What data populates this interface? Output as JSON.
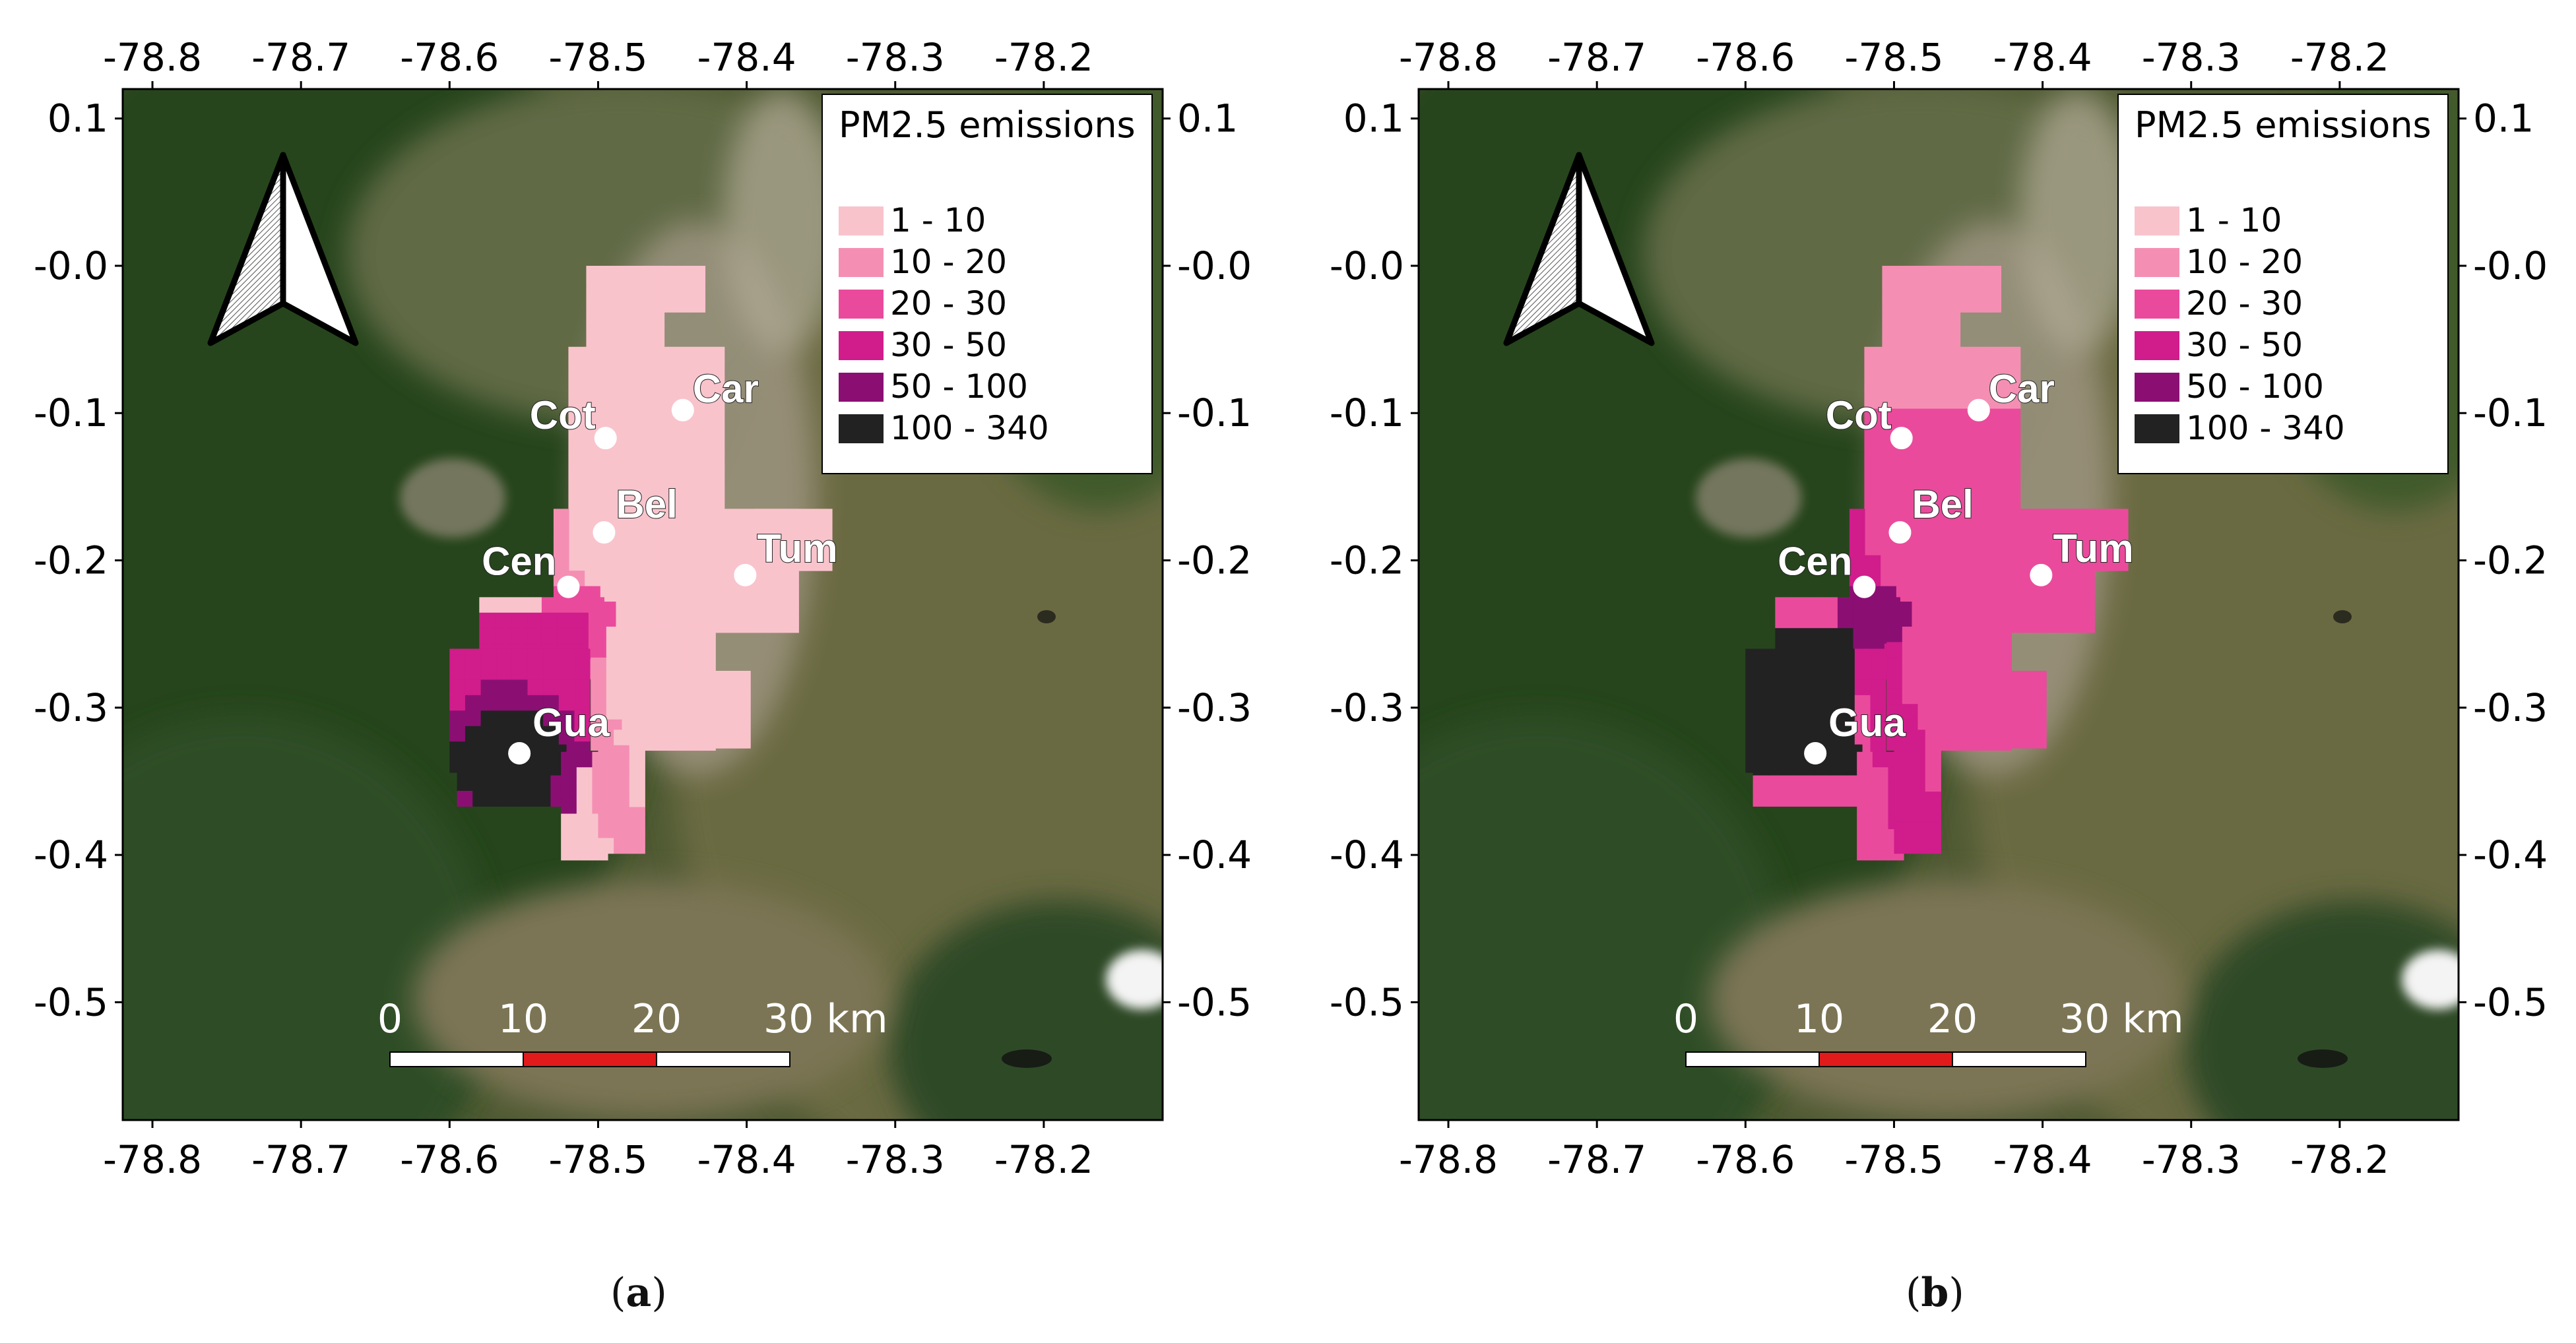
{
  "panels": [
    {
      "id": "a",
      "label_open": "(",
      "label_letter": "a",
      "label_close": ")",
      "legend_title": "PM2.5 emissions",
      "variant": "a"
    },
    {
      "id": "b",
      "label_open": "(",
      "label_letter": "b",
      "label_close": ")",
      "legend_title": "PM2.5 emissions",
      "variant": "b"
    }
  ],
  "legend_classes": [
    {
      "label": "1 - 10",
      "color": "#f9c3cc"
    },
    {
      "label": "10 - 20",
      "color": "#f48fb3"
    },
    {
      "label": "20 - 30",
      "color": "#ea4a9c"
    },
    {
      "label": "30 - 50",
      "color": "#d01d8b"
    },
    {
      "label": "50 - 100",
      "color": "#8b0f73"
    },
    {
      "label": "100 - 340",
      "color": "#222222"
    }
  ],
  "axes": {
    "x_ticks": [
      "-78.8",
      "-78.7",
      "-78.6",
      "-78.5",
      "-78.4",
      "-78.3",
      "-78.2"
    ],
    "x_values": [
      -78.8,
      -78.7,
      -78.6,
      -78.5,
      -78.4,
      -78.3,
      -78.2
    ],
    "y_ticks": [
      "0.1",
      "-0.0",
      "-0.1",
      "-0.2",
      "-0.3",
      "-0.4",
      "-0.5"
    ],
    "y_values": [
      0.1,
      0.0,
      -0.1,
      -0.2,
      -0.3,
      -0.4,
      -0.5
    ],
    "xlim": [
      -78.82,
      -78.12
    ],
    "ylim": [
      -0.58,
      0.12
    ]
  },
  "cities": [
    {
      "code": "Car",
      "lon": -78.443,
      "lat": -0.098
    },
    {
      "code": "Cot",
      "lon": -78.495,
      "lat": -0.117
    },
    {
      "code": "Bel",
      "lon": -78.496,
      "lat": -0.181
    },
    {
      "code": "Cen",
      "lon": -78.52,
      "lat": -0.218
    },
    {
      "code": "Tum",
      "lon": -78.401,
      "lat": -0.21
    },
    {
      "code": "Gua",
      "lon": -78.553,
      "lat": -0.331
    }
  ],
  "scale_bar": {
    "labels": [
      "0",
      "10",
      "20",
      "30 km"
    ],
    "segment_colors": [
      "#ffffff",
      "#e11b1b",
      "#ffffff"
    ]
  },
  "north_arrow": "north-arrow-icon",
  "colors": {
    "forest_dark": "#25441f",
    "forest": "#3c5a2c",
    "urban": "#a49a88",
    "snow": "#f4f4f4",
    "frame": "#000000"
  }
}
